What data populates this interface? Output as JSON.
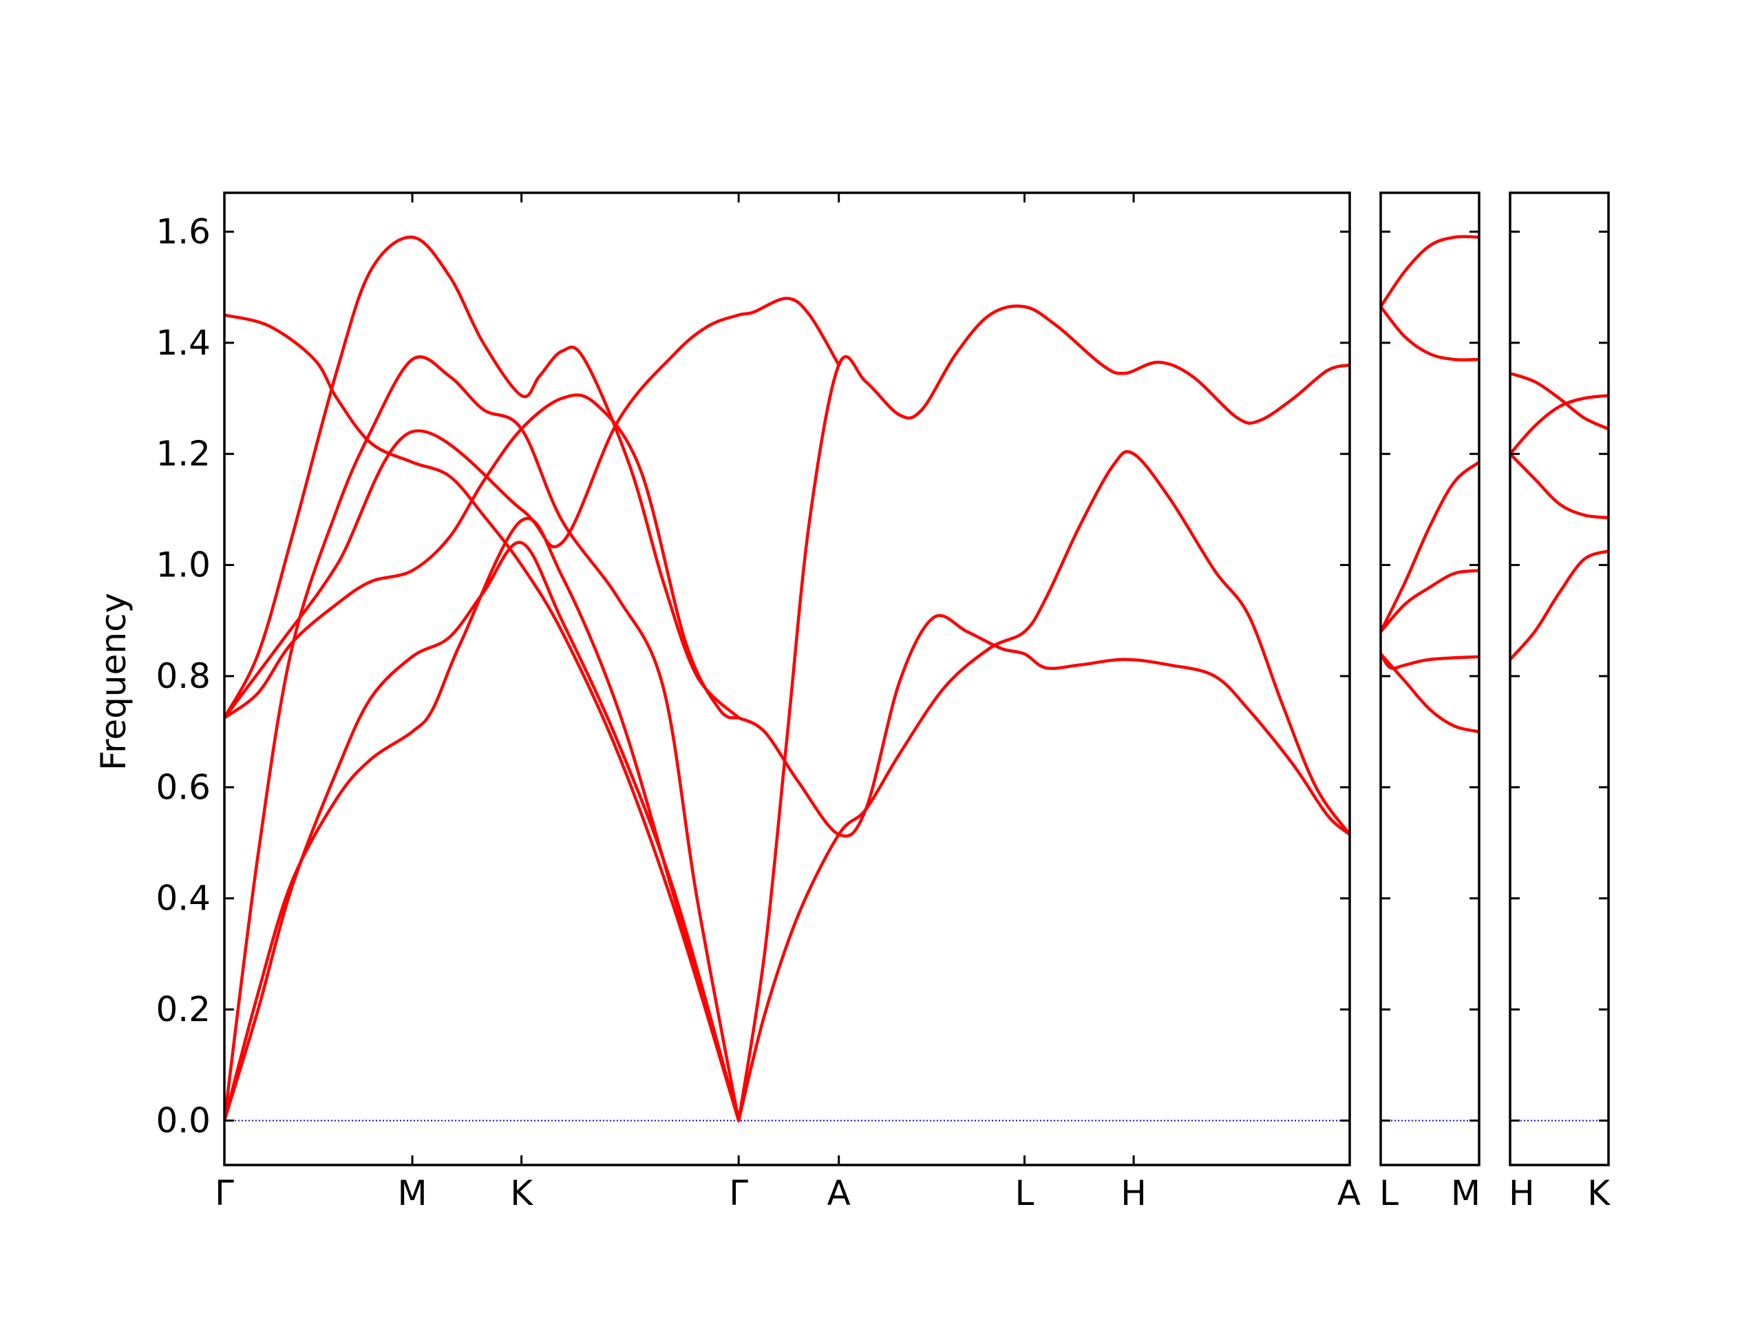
{
  "chart_data": {
    "type": "line",
    "title": "",
    "ylabel": "Frequency",
    "xlabel": "",
    "ylim": [
      -0.08,
      1.67
    ],
    "yticks": [
      0.0,
      0.2,
      0.4,
      0.6,
      0.8,
      1.0,
      1.2,
      1.4,
      1.6
    ],
    "ytick_labels": [
      "0.0",
      "0.2",
      "0.4",
      "0.6",
      "0.8",
      "1.0",
      "1.2",
      "1.4",
      "1.6"
    ],
    "grid": false,
    "line_color": "#ff0000",
    "zero_line_color": "#0000ff",
    "x_unit": "path distance along the Brillouin-zone path, each panel normalized 0 to 1",
    "panels": [
      {
        "path_labels": [
          "Γ",
          "M",
          "K",
          "Γ",
          "A",
          "L",
          "H",
          "A"
        ],
        "label_positions": [
          0.0,
          0.167,
          0.264,
          0.457,
          0.546,
          0.711,
          0.808,
          1.0
        ],
        "bands": [
          [
            [
              0,
              0
            ],
            [
              0.03,
              0.23
            ],
            [
              0.06,
              0.43
            ],
            [
              0.1,
              0.58
            ],
            [
              0.13,
              0.65
            ],
            [
              0.167,
              0.7
            ],
            [
              0.185,
              0.74
            ],
            [
              0.21,
              0.86
            ],
            [
              0.264,
              1.08
            ],
            [
              0.3,
              0.98
            ],
            [
              0.35,
              0.74
            ],
            [
              0.4,
              0.4
            ],
            [
              0.457,
              0
            ]
          ],
          [
            [
              0,
              0
            ],
            [
              0.03,
              0.2
            ],
            [
              0.06,
              0.42
            ],
            [
              0.1,
              0.63
            ],
            [
              0.13,
              0.76
            ],
            [
              0.167,
              0.835
            ],
            [
              0.2,
              0.87
            ],
            [
              0.23,
              0.95
            ],
            [
              0.264,
              1.04
            ],
            [
              0.3,
              0.9
            ],
            [
              0.35,
              0.68
            ],
            [
              0.4,
              0.41
            ],
            [
              0.457,
              0
            ]
          ],
          [
            [
              0,
              0
            ],
            [
              0.03,
              0.48
            ],
            [
              0.06,
              0.85
            ],
            [
              0.1,
              1.1
            ],
            [
              0.13,
              1.24
            ],
            [
              0.167,
              1.37
            ],
            [
              0.2,
              1.34
            ],
            [
              0.23,
              1.28
            ],
            [
              0.264,
              1.245
            ],
            [
              0.3,
              1.08
            ],
            [
              0.35,
              0.94
            ],
            [
              0.39,
              0.78
            ],
            [
              0.42,
              0.4
            ],
            [
              0.457,
              0
            ]
          ],
          [
            [
              0,
              0.725
            ],
            [
              0.03,
              0.77
            ],
            [
              0.06,
              0.86
            ],
            [
              0.1,
              0.93
            ],
            [
              0.13,
              0.97
            ],
            [
              0.167,
              0.99
            ],
            [
              0.2,
              1.05
            ],
            [
              0.23,
              1.15
            ],
            [
              0.264,
              1.245
            ],
            [
              0.3,
              1.3
            ],
            [
              0.33,
              1.29
            ],
            [
              0.37,
              1.17
            ],
            [
              0.41,
              0.86
            ],
            [
              0.44,
              0.74
            ],
            [
              0.457,
              0.725
            ]
          ],
          [
            [
              0,
              0.725
            ],
            [
              0.03,
              0.84
            ],
            [
              0.06,
              1.05
            ],
            [
              0.1,
              1.35
            ],
            [
              0.13,
              1.53
            ],
            [
              0.167,
              1.59
            ],
            [
              0.2,
              1.52
            ],
            [
              0.23,
              1.4
            ],
            [
              0.264,
              1.305
            ],
            [
              0.28,
              1.34
            ],
            [
              0.3,
              1.385
            ],
            [
              0.32,
              1.37
            ],
            [
              0.36,
              1.18
            ],
            [
              0.39,
              0.97
            ],
            [
              0.42,
              0.8
            ],
            [
              0.457,
              0.725
            ]
          ],
          [
            [
              0,
              1.45
            ],
            [
              0.04,
              1.43
            ],
            [
              0.08,
              1.37
            ],
            [
              0.1,
              1.3
            ],
            [
              0.13,
              1.22
            ],
            [
              0.167,
              1.185
            ],
            [
              0.2,
              1.16
            ],
            [
              0.23,
              1.09
            ],
            [
              0.264,
              1.0
            ],
            [
              0.3,
              0.88
            ],
            [
              0.35,
              0.66
            ],
            [
              0.4,
              0.38
            ],
            [
              0.457,
              0
            ]
          ],
          [
            [
              0.457,
              0
            ],
            [
              0.48,
              0.19
            ],
            [
              0.51,
              0.37
            ],
            [
              0.546,
              0.515
            ],
            [
              0.57,
              0.56
            ],
            [
              0.6,
              0.66
            ],
            [
              0.64,
              0.78
            ],
            [
              0.68,
              0.85
            ],
            [
              0.711,
              0.88
            ],
            [
              0.73,
              0.94
            ],
            [
              0.76,
              1.07
            ],
            [
              0.79,
              1.18
            ],
            [
              0.808,
              1.2
            ],
            [
              0.84,
              1.12
            ],
            [
              0.88,
              0.99
            ],
            [
              0.91,
              0.91
            ],
            [
              0.94,
              0.75
            ],
            [
              0.97,
              0.6
            ],
            [
              1.0,
              0.515
            ]
          ],
          [
            [
              0.457,
              0
            ],
            [
              0.48,
              0.3
            ],
            [
              0.5,
              0.69
            ],
            [
              0.52,
              1.08
            ],
            [
              0.546,
              1.36
            ],
            [
              0.57,
              1.33
            ],
            [
              0.6,
              1.27
            ],
            [
              0.62,
              1.28
            ],
            [
              0.65,
              1.38
            ],
            [
              0.68,
              1.45
            ],
            [
              0.711,
              1.465
            ],
            [
              0.74,
              1.43
            ],
            [
              0.78,
              1.36
            ],
            [
              0.8,
              1.345
            ],
            [
              0.83,
              1.365
            ],
            [
              0.86,
              1.34
            ],
            [
              0.9,
              1.265
            ],
            [
              0.92,
              1.26
            ],
            [
              0.95,
              1.3
            ],
            [
              0.98,
              1.35
            ],
            [
              1.0,
              1.36
            ]
          ],
          [
            [
              0.457,
              0.725
            ],
            [
              0.48,
              0.7
            ],
            [
              0.51,
              0.61
            ],
            [
              0.546,
              0.515
            ],
            [
              0.57,
              0.56
            ],
            [
              0.6,
              0.79
            ],
            [
              0.63,
              0.905
            ],
            [
              0.66,
              0.88
            ],
            [
              0.69,
              0.85
            ],
            [
              0.711,
              0.84
            ],
            [
              0.73,
              0.815
            ],
            [
              0.76,
              0.82
            ],
            [
              0.8,
              0.83
            ],
            [
              0.84,
              0.82
            ],
            [
              0.88,
              0.8
            ],
            [
              0.91,
              0.74
            ],
            [
              0.95,
              0.64
            ],
            [
              0.98,
              0.55
            ],
            [
              1.0,
              0.515
            ]
          ],
          [
            [
              0,
              0.725
            ],
            [
              0.05,
              0.86
            ],
            [
              0.1,
              1.0
            ],
            [
              0.167,
              1.24
            ],
            [
              0.264,
              1.1
            ],
            [
              0.3,
              1.04
            ],
            [
              0.35,
              1.26
            ],
            [
              0.4,
              1.38
            ],
            [
              0.43,
              1.43
            ],
            [
              0.457,
              1.45
            ],
            [
              0.47,
              1.455
            ],
            [
              0.5,
              1.48
            ],
            [
              0.52,
              1.45
            ],
            [
              0.546,
              1.36
            ]
          ]
        ]
      },
      {
        "path_labels": [
          "L",
          "M"
        ],
        "label_positions": [
          0.0,
          1.0
        ],
        "bands": [
          [
            [
              0,
              1.465
            ],
            [
              0.25,
              1.53
            ],
            [
              0.5,
              1.575
            ],
            [
              0.75,
              1.59
            ],
            [
              1,
              1.59
            ]
          ],
          [
            [
              0,
              1.465
            ],
            [
              0.25,
              1.41
            ],
            [
              0.5,
              1.38
            ],
            [
              0.75,
              1.37
            ],
            [
              1,
              1.37
            ]
          ],
          [
            [
              0,
              0.88
            ],
            [
              0.25,
              0.97
            ],
            [
              0.5,
              1.07
            ],
            [
              0.75,
              1.15
            ],
            [
              1,
              1.185
            ]
          ],
          [
            [
              0,
              0.88
            ],
            [
              0.25,
              0.93
            ],
            [
              0.5,
              0.96
            ],
            [
              0.75,
              0.985
            ],
            [
              1,
              0.99
            ]
          ],
          [
            [
              0,
              0.84
            ],
            [
              0.1,
              0.815
            ],
            [
              0.25,
              0.82
            ],
            [
              0.5,
              0.83
            ],
            [
              1,
              0.835
            ]
          ],
          [
            [
              0,
              0.84
            ],
            [
              0.25,
              0.79
            ],
            [
              0.5,
              0.74
            ],
            [
              0.75,
              0.71
            ],
            [
              1,
              0.7
            ]
          ]
        ]
      },
      {
        "path_labels": [
          "H",
          "K"
        ],
        "label_positions": [
          0.0,
          1.0
        ],
        "bands": [
          [
            [
              0,
              1.345
            ],
            [
              0.25,
              1.33
            ],
            [
              0.5,
              1.3
            ],
            [
              0.75,
              1.265
            ],
            [
              1,
              1.245
            ]
          ],
          [
            [
              0,
              1.2
            ],
            [
              0.25,
              1.25
            ],
            [
              0.5,
              1.285
            ],
            [
              0.75,
              1.3
            ],
            [
              1,
              1.305
            ]
          ],
          [
            [
              0,
              1.2
            ],
            [
              0.25,
              1.155
            ],
            [
              0.5,
              1.11
            ],
            [
              0.75,
              1.09
            ],
            [
              1,
              1.085
            ]
          ],
          [
            [
              0,
              0.83
            ],
            [
              0.25,
              0.88
            ],
            [
              0.5,
              0.95
            ],
            [
              0.75,
              1.01
            ],
            [
              1,
              1.025
            ]
          ]
        ]
      }
    ]
  }
}
